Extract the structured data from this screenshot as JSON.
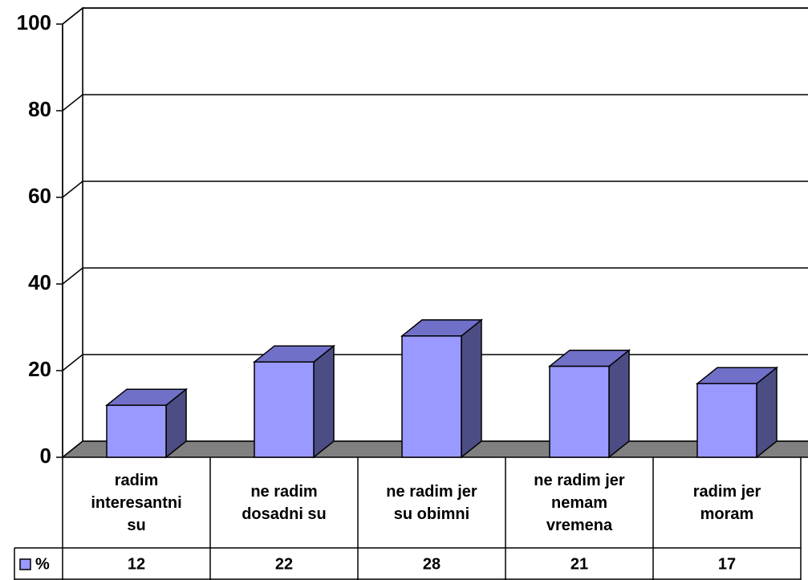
{
  "chart_data": {
    "type": "bar3d",
    "categories": [
      "radim interesantni su",
      "ne radim dosadni su",
      "ne radim jer su obimni",
      "ne radim jer nemam vremena",
      "radim jer moram"
    ],
    "series": [
      {
        "name": "%",
        "color": "#9999ff",
        "values": [
          12,
          22,
          28,
          21,
          17
        ]
      }
    ],
    "ylim": [
      0,
      100
    ],
    "yticks": [
      0,
      20,
      40,
      60,
      80,
      100
    ],
    "grid": true,
    "legend": "left"
  }
}
